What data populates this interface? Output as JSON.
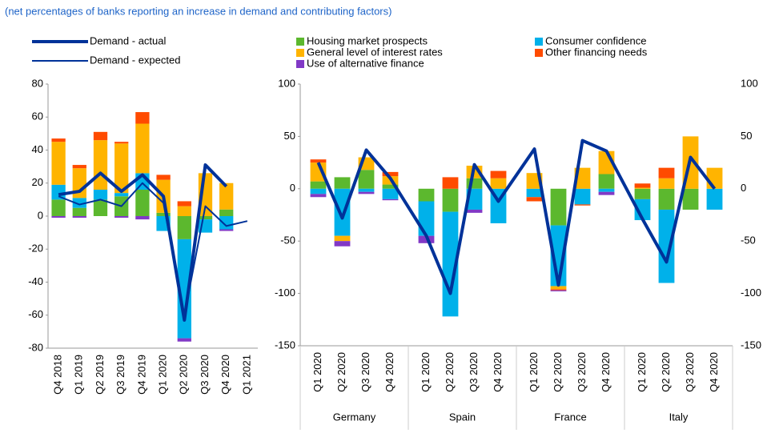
{
  "subtitle": "(net percentages of banks reporting an increase in demand and contributing factors)",
  "chart_data": [
    {
      "type": "bar",
      "categories": [
        "Q4 2018",
        "Q1 2019",
        "Q2 2019",
        "Q3 2019",
        "Q4 2019",
        "Q1 2020",
        "Q2 2020",
        "Q3 2020",
        "Q4 2020",
        "Q1 2021"
      ],
      "series": [
        {
          "name": "Housing market prospects",
          "color": "#5cb82e",
          "values": [
            10,
            5,
            10,
            12,
            16,
            2,
            -14,
            -2,
            4,
            null
          ]
        },
        {
          "name": "Consumer confidence",
          "color": "#00b1ea",
          "values": [
            9,
            6,
            6,
            2,
            10,
            -9,
            -60,
            -8,
            -8,
            null
          ]
        },
        {
          "name": "General level of interest rates",
          "color": "#ffb400",
          "values": [
            26,
            18,
            30,
            30,
            30,
            20,
            6,
            26,
            16,
            null
          ]
        },
        {
          "name": "Other financing needs",
          "color": "#ff4b00",
          "values": [
            2,
            2,
            5,
            1,
            7,
            3,
            3,
            0,
            0,
            null
          ]
        },
        {
          "name": "Use of alternative finance",
          "color": "#8139c6",
          "values": [
            -1,
            -1,
            0,
            -1,
            -2,
            0,
            -2,
            0,
            -1,
            null
          ]
        }
      ],
      "lines": [
        {
          "name": "Demand - actual",
          "color": "#003299",
          "values": [
            13,
            15,
            26,
            15,
            25,
            12,
            -63,
            31,
            18,
            null
          ]
        },
        {
          "name": "Demand - expected",
          "color": "#003299",
          "values": [
            12,
            7,
            10,
            6,
            20,
            8,
            -60,
            6,
            -6,
            -3
          ]
        }
      ],
      "ylim": [
        -80,
        80
      ],
      "yticks": [
        -80,
        -60,
        -40,
        -20,
        0,
        20,
        40,
        60,
        80
      ]
    },
    {
      "type": "bar",
      "categories": [
        "Q1 2020",
        "Q2 2020",
        "Q3 2020",
        "Q4 2020",
        "Q1 2020",
        "Q2 2020",
        "Q3 2020",
        "Q4 2020",
        "Q1 2020",
        "Q2 2020",
        "Q3 2020",
        "Q4 2020",
        "Q1 2020",
        "Q2 2020",
        "Q3 2020",
        "Q4 2020"
      ],
      "groups": [
        "Germany",
        "Spain",
        "France",
        "Italy"
      ],
      "series": [
        {
          "values": [
            7,
            11,
            18,
            4,
            -12,
            -22,
            10,
            0,
            0,
            -35,
            0,
            14,
            -10,
            -20,
            -20,
            0
          ]
        },
        {
          "values": [
            -5,
            -45,
            -3,
            -10,
            -33,
            -100,
            -20,
            -33,
            -8,
            -58,
            -15,
            -3,
            -20,
            -70,
            0,
            -20
          ]
        },
        {
          "values": [
            18,
            -5,
            12,
            8,
            0,
            0,
            12,
            10,
            15,
            -3,
            20,
            22,
            1,
            10,
            50,
            20
          ]
        },
        {
          "values": [
            3,
            0,
            0,
            4,
            0,
            11,
            0,
            7,
            -4,
            -1,
            -1,
            0,
            4,
            10,
            0,
            0
          ]
        },
        {
          "values": [
            -3,
            -5,
            -2,
            -1,
            -7,
            0,
            -3,
            0,
            0,
            -1,
            0,
            -3,
            0,
            0,
            0,
            0
          ]
        }
      ],
      "lines": [
        {
          "values": [
            25,
            -28,
            37,
            10,
            -45,
            -100,
            23,
            -12,
            38,
            -92,
            46,
            36,
            -29,
            -70,
            30,
            0
          ]
        }
      ],
      "ylim": [
        -150,
        100
      ],
      "yticks": [
        -150,
        -100,
        -50,
        0,
        50,
        100
      ]
    }
  ]
}
